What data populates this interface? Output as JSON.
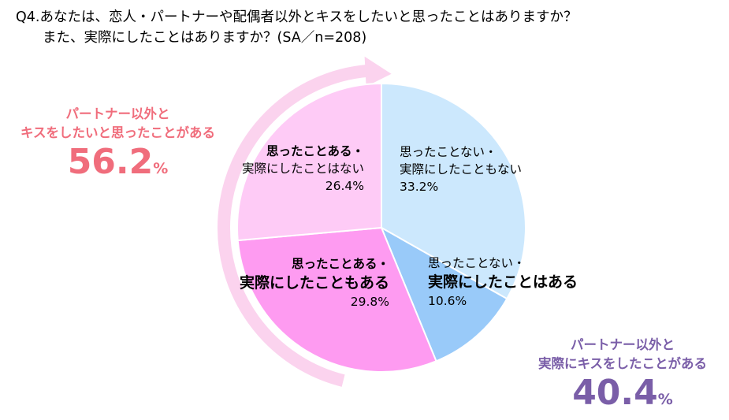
{
  "question": {
    "line1": "Q4.あなたは、恋人・パートナーや配偶者以外とキスをしたいと思ったことはありますか？",
    "line2": "また、実際にしたことはありますか？(SA／n=208)"
  },
  "callout_left": {
    "line1": "パートナー以外と",
    "line2": "キスをしたいと思ったことがある",
    "value": "56.2",
    "unit": "%"
  },
  "callout_right": {
    "line1": "パートナー以外と",
    "line2": "実際にキスをしたことがある",
    "value": "40.4",
    "unit": "%"
  },
  "colors": {
    "arrow": "#fbd3ee",
    "left_callout": "#f06d7c",
    "right_callout": "#7a5ea8"
  },
  "chart_data": {
    "type": "pie",
    "start": "top",
    "direction": "clockwise",
    "slices": [
      {
        "label_line1": "思ったことない・",
        "label_line2": "実際にしたこともない",
        "value": 33.2,
        "value_label": "33.2%",
        "color": "#cce8fd"
      },
      {
        "label_line1": "思ったことない・",
        "label_line2": "実際にしたことはある",
        "value": 10.6,
        "value_label": "10.6%",
        "color": "#99caf9"
      },
      {
        "label_line1": "思ったことある・",
        "label_line2": "実際にしたこともある",
        "value": 29.8,
        "value_label": "29.8%",
        "color": "#fe9bf1"
      },
      {
        "label_line1": "思ったことある・",
        "label_line2": "実際にしたことはない",
        "value": 26.4,
        "value_label": "26.4%",
        "color": "#fecbf6"
      }
    ]
  }
}
